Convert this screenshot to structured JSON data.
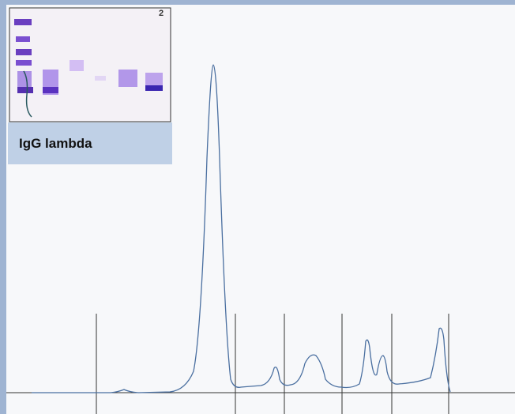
{
  "gel_number": "2",
  "label": "IgG lambda"
}
